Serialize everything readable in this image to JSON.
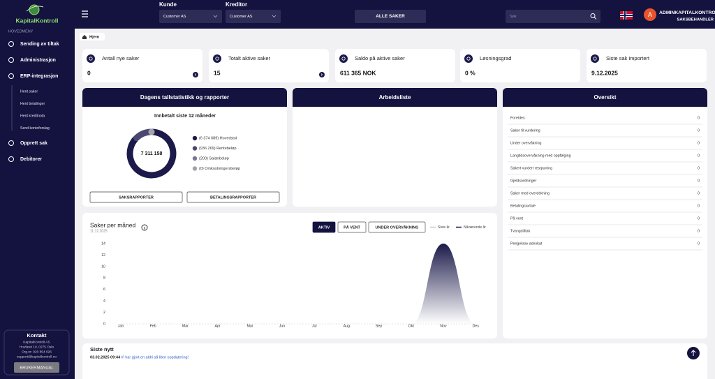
{
  "sidebar": {
    "logo": "KapitalKontroll",
    "section": "HOVEDMENY",
    "menu": [
      {
        "label": "Sending av tiltak"
      },
      {
        "label": "Administrasjon"
      },
      {
        "label": "ERP-integrasjon",
        "children": [
          "Hent saker",
          "Hent betalinger",
          "Hent kreditnota",
          "Send kontoforslag"
        ]
      },
      {
        "label": "Opprett sak"
      },
      {
        "label": "Debitorer"
      }
    ],
    "contact": {
      "title": "Kontakt",
      "lines": [
        "KapitalKontroll AS",
        "Hovfaret 10, 0275 Oslo",
        "Org.nr: 920 854 026",
        "support@kapitalkontroll.no"
      ],
      "button": "BRUKERMANUAL"
    }
  },
  "topbar": {
    "customer_label": "Kunde",
    "customer_value": "Customer AS",
    "creditor_label": "Kreditor",
    "creditor_value": "Customer AS",
    "all_cases": "ALLE SAKER",
    "search_placeholder": "Søk",
    "avatar": "A",
    "user": "ADMINKAPITALKONTROLL",
    "role": "SAKSBEHANDLER"
  },
  "breadcrumb": "Hjem",
  "stats": [
    {
      "label": "Antall nye saker",
      "value": 0
    },
    {
      "label": "Totalt aktive saker",
      "value": 15
    },
    {
      "label": "Saldo på aktive saker",
      "value": "611 365 NOK"
    },
    {
      "label": "Løsningsgrad",
      "value": "0 %"
    },
    {
      "label": "Siste sak importert",
      "value": "9.12.2025"
    }
  ],
  "statistics": {
    "title": "Dagens tallstatistikk og rapporter",
    "subtitle": "Innbetalt siste 12 måneder",
    "total": "7 311 158",
    "items": [
      {
        "label": "(6 374 689) Hovedstol",
        "value": 6374689,
        "color": "#1b1a4a"
      },
      {
        "label": "(936 269) Rentebeløp",
        "value": 936269,
        "color": "#4a4872"
      },
      {
        "label": "(200) Salærbeløp",
        "value": 200,
        "color": "#77758f"
      },
      {
        "label": "(0) Omkostningersbeløp",
        "value": 0,
        "color": "#a2a1ad"
      }
    ],
    "buttons": [
      "SAKSRAPPORTER",
      "BETALINGSRAPPORTER"
    ]
  },
  "worklist": {
    "title": "Arbeidsliste"
  },
  "overview": {
    "title": "Oversikt",
    "rows": [
      {
        "label": "Foreldes",
        "count": 0
      },
      {
        "label": "Saker til vurdering",
        "count": 0
      },
      {
        "label": "Under overvåkning",
        "count": 0
      },
      {
        "label": "Langtidsovervåkning med oppfølging",
        "count": 0
      },
      {
        "label": "Sakert vurdert restpurring",
        "count": 0
      },
      {
        "label": "Gjeldsordninger",
        "count": 0
      },
      {
        "label": "Saker med overdekning",
        "count": 0
      },
      {
        "label": "Betalingsavtale",
        "count": 0
      },
      {
        "label": "På vent",
        "count": 0
      },
      {
        "label": "Tvangstiltak",
        "count": 0
      },
      {
        "label": "Pengekrav advokat",
        "count": 0
      }
    ]
  },
  "chart": {
    "type": "area",
    "title": "Saker per måned",
    "date": "11.12.2025",
    "filters": [
      {
        "label": "AKTIV",
        "active": true
      },
      {
        "label": "PÅ VENT",
        "active": false
      },
      {
        "label": "UNDER OVERVÅKNING",
        "active": false
      }
    ],
    "categories": [
      "Jan",
      "Feb",
      "Mar",
      "Apr",
      "Mai",
      "Jun",
      "Jul",
      "Aug",
      "Sep",
      "Okt",
      "Nov",
      "Des"
    ],
    "series": [
      {
        "name": "Siste år",
        "color": "#c9c9d3",
        "values": [
          0,
          0,
          0,
          0,
          0,
          0,
          0,
          0,
          0,
          0,
          0,
          0
        ]
      },
      {
        "name": "Nåværende år",
        "color": "#1b1a4a",
        "values": [
          0,
          0,
          0,
          0,
          0,
          0,
          0,
          0,
          0,
          0,
          14,
          0
        ]
      }
    ],
    "ylim": [
      0,
      14
    ],
    "yticks": [
      0,
      2,
      4,
      6,
      8,
      10,
      12,
      14
    ]
  },
  "news": {
    "title": "Siste nytt",
    "items": [
      {
        "date": "03.02.2025 09:44",
        "text": "Vi har gjort en aldri så liten oppdatering!"
      }
    ]
  }
}
